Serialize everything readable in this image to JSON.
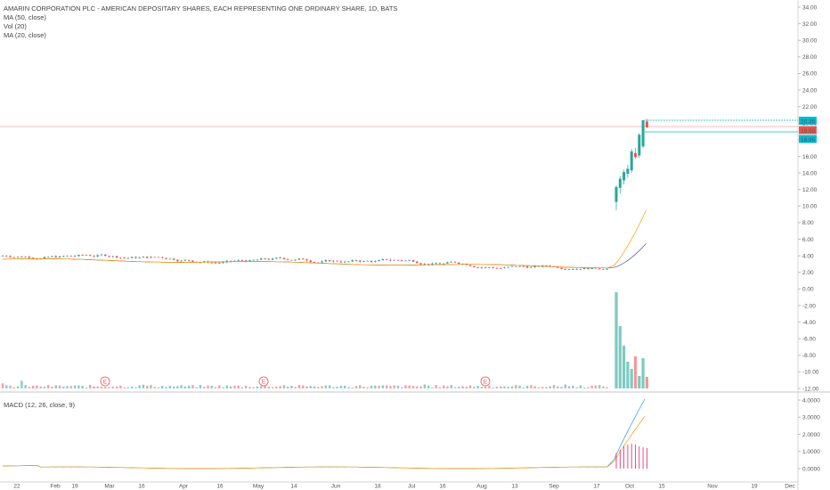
{
  "legend": {
    "title": "AMARIN CORPORATION PLC - AMERICAN DEPOSITARY SHARES, EACH REPRESENTING ONE ORDINARY SHARE, 1D, BATS",
    "ma50": "MA (50, close)",
    "vol": "Vol (20)",
    "ma20": "MA (20, close)",
    "macd": "MACD (12, 26, close, 9)"
  },
  "colors": {
    "up": "#26a69a",
    "down": "#ef5350",
    "ma50": "#3f51b5",
    "ma20": "#ff9800",
    "macd_line": "#2196f3",
    "signal_line": "#ff9800",
    "hist": "#e91e63",
    "price_line": "#f4a6a6",
    "marker_line": "#00bcd4"
  },
  "chart_data": {
    "type": "candlestick",
    "price_axis": {
      "ticks": [
        "34.00",
        "32.00",
        "30.00",
        "28.00",
        "26.00",
        "24.00",
        "22.00",
        "20.00",
        "18.00",
        "16.00",
        "14.00",
        "12.00",
        "10.00",
        "8.00",
        "6.00",
        "4.00",
        "2.00",
        "0.00",
        "-2.00",
        "-4.00",
        "-6.00",
        "-8.00",
        "-10.00",
        "-12.00"
      ],
      "ylim": [
        -12,
        34
      ]
    },
    "price_labels": [
      {
        "text": "20.35",
        "value": 20.35,
        "color": "#00bcd4"
      },
      {
        "text": "19.50",
        "value": 19.5,
        "color": "#ef5350"
      },
      {
        "text": "18.95",
        "value": 18.95,
        "color": "#00bcd4"
      }
    ],
    "macd_axis": {
      "ticks": [
        "4.0000",
        "3.0000",
        "2.0000",
        "1.0000",
        "0.0000"
      ],
      "ylim": [
        -0.3,
        4.3
      ]
    },
    "x_labels": [
      "22",
      "Feb",
      "19",
      "Mar",
      "16",
      "Apr",
      "16",
      "May",
      "14",
      "Jun",
      "18",
      "Jul",
      "16",
      "Aug",
      "13",
      "Sep",
      "17",
      "Oct",
      "15",
      "Nov",
      "19",
      "Dec"
    ],
    "earnings_markers": [
      "E",
      "E",
      "E"
    ],
    "price_baseline": 3.2,
    "spike_candles": [
      {
        "o": 10.5,
        "h": 12.5,
        "l": 9.5,
        "c": 12.3
      },
      {
        "o": 12.2,
        "h": 13.6,
        "l": 11.5,
        "c": 13.3
      },
      {
        "o": 13.1,
        "h": 14.4,
        "l": 12.6,
        "c": 14.1
      },
      {
        "o": 13.9,
        "h": 15.0,
        "l": 13.4,
        "c": 14.5
      },
      {
        "o": 14.3,
        "h": 16.9,
        "l": 14.0,
        "c": 16.6
      },
      {
        "o": 16.4,
        "h": 17.0,
        "l": 15.7,
        "c": 15.9
      },
      {
        "o": 16.1,
        "h": 18.8,
        "l": 15.8,
        "c": 18.6
      },
      {
        "o": 17.2,
        "h": 20.4,
        "l": 17.0,
        "c": 20.35
      },
      {
        "o": 20.2,
        "h": 20.5,
        "l": 19.4,
        "c": 19.5
      }
    ],
    "ma20_end": 9.5,
    "ma50_end": 5.5,
    "macd_end": 4.05,
    "signal_end": 3.05,
    "hist_values": [
      0.9,
      1.1,
      1.3,
      1.4,
      1.45,
      1.4,
      1.3,
      1.25,
      1.2
    ]
  }
}
